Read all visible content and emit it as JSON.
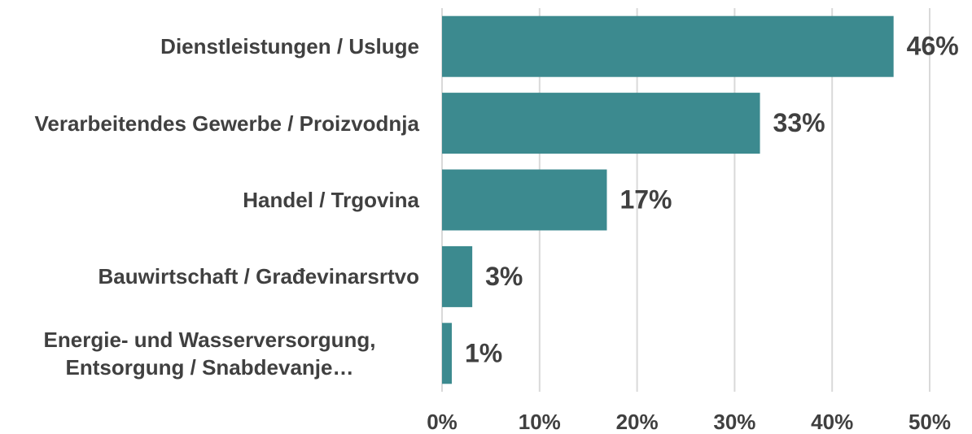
{
  "chart_data": {
    "type": "barh",
    "categories": [
      "Dienstleistungen / Usluge",
      "Verarbeitendes Gewerbe / Proizvodnja",
      "Handel / Trgovina",
      "Bauwirtschaft / Građevinarsrtvo",
      "Energie- und Wasserversorgung, Entsorgung / Snabdevanje…"
    ],
    "values": [
      46.3,
      32.6,
      16.9,
      3.1,
      1.0
    ],
    "value_labels": [
      "46%",
      "33%",
      "17%",
      "3%",
      "1%"
    ],
    "color": "#3c8a8f",
    "xlim": [
      0,
      50
    ],
    "xticks": [
      {
        "value": 0,
        "label": "0%"
      },
      {
        "value": 10,
        "label": "10%"
      },
      {
        "value": 20,
        "label": "20%"
      },
      {
        "value": 30,
        "label": "30%"
      },
      {
        "value": 40,
        "label": "40%"
      },
      {
        "value": 50,
        "label": "50%"
      }
    ],
    "grid": true
  }
}
